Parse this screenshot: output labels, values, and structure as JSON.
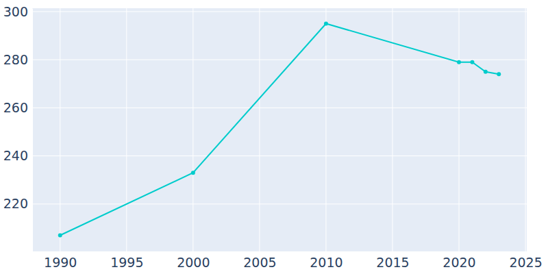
{
  "chart_data": {
    "type": "line",
    "x": [
      1990,
      2000,
      2010,
      2020,
      2021,
      2022,
      2023
    ],
    "values": [
      207,
      233,
      295,
      279,
      279,
      275,
      274
    ],
    "color": "#00cccc",
    "marker": "circle",
    "xlim": [
      1987.9,
      2025.1
    ],
    "xticks": [
      1990,
      1995,
      2000,
      2005,
      2010,
      2015,
      2020,
      2025
    ],
    "ylim": [
      200.3,
      301.4
    ],
    "yticks": [
      220,
      240,
      260,
      280,
      300
    ],
    "grid": true
  }
}
